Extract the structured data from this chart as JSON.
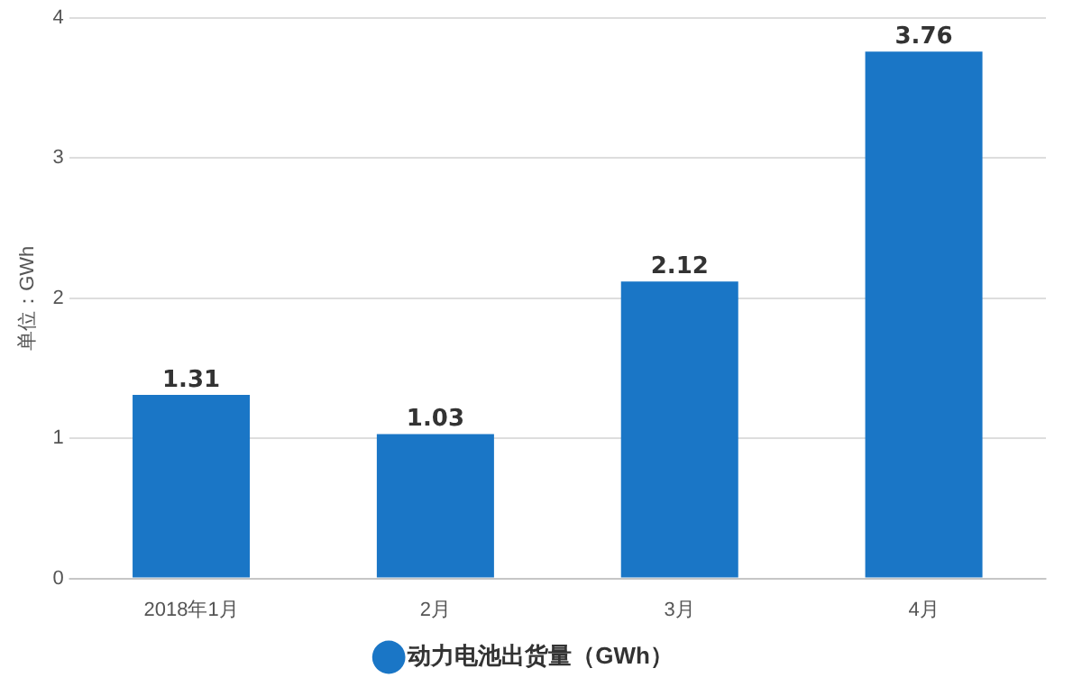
{
  "chart_data": {
    "type": "bar",
    "ylabel": "单位：GWh",
    "categories": [
      "2018年1月",
      "2月",
      "3月",
      "4月"
    ],
    "series": [
      {
        "name": "动力电池出货量（GWh）",
        "color": "#1a76c6",
        "values": [
          1.31,
          1.03,
          2.12,
          3.76
        ]
      }
    ],
    "ylim": [
      0,
      4
    ],
    "yticks": [
      0,
      1,
      2,
      3,
      4
    ],
    "grid": "y",
    "legend": "bottom",
    "data_labels": true
  }
}
